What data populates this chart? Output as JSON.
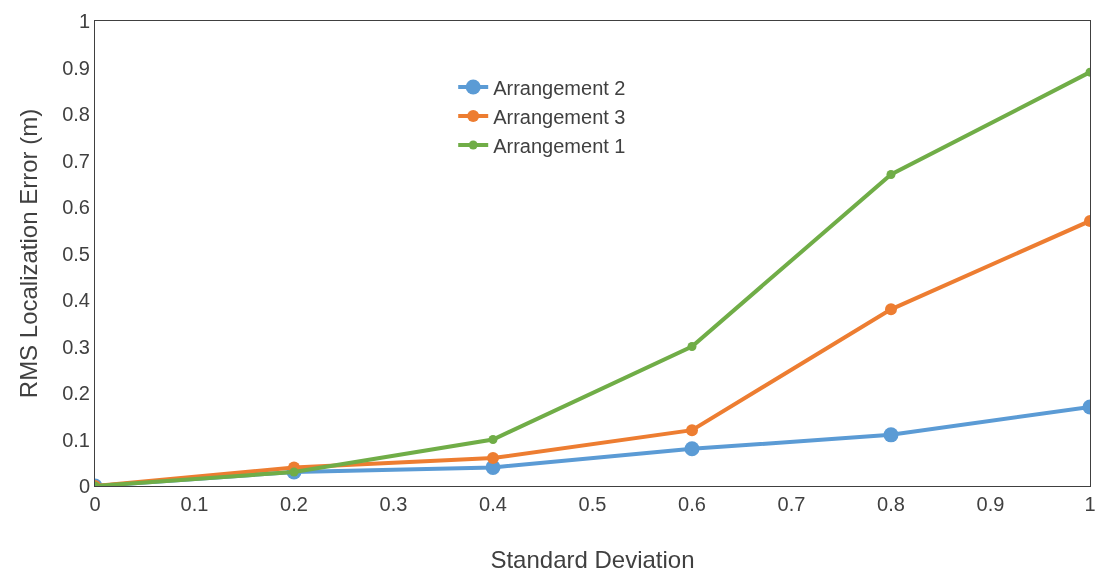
{
  "chart_data": {
    "type": "line",
    "xlabel": "Standard Deviation",
    "ylabel": "RMS Localization Error (m)",
    "x": [
      0,
      0.2,
      0.4,
      0.6,
      0.8,
      1
    ],
    "series": [
      {
        "name": "Arrangement 2",
        "color": "#5b9bd5",
        "values": [
          0,
          0.03,
          0.04,
          0.08,
          0.11,
          0.17
        ]
      },
      {
        "name": "Arrangement 3",
        "color": "#ed7d31",
        "values": [
          0,
          0.04,
          0.06,
          0.12,
          0.38,
          0.57
        ]
      },
      {
        "name": "Arrangement 1",
        "color": "#70ad47",
        "values": [
          0,
          0.03,
          0.1,
          0.3,
          0.67,
          0.89
        ]
      }
    ],
    "xlim": [
      0,
      1
    ],
    "xticks": [
      0,
      0.1,
      0.2,
      0.3,
      0.4,
      0.5,
      0.6,
      0.7,
      0.8,
      0.9,
      1
    ],
    "ylim": [
      0,
      1
    ],
    "yticks": [
      0,
      0.1,
      0.2,
      0.3,
      0.4,
      0.5,
      0.6,
      0.7,
      0.8,
      0.9,
      1
    ],
    "grid": false,
    "legend": "top",
    "marker": "circle",
    "line_style": "solid"
  }
}
